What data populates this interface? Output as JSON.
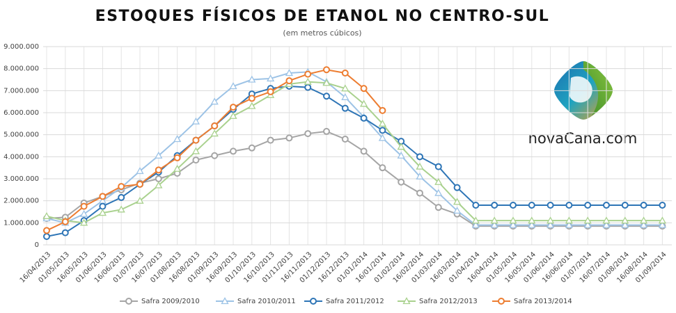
{
  "chart_data": {
    "type": "line",
    "title": "ESTOQUES FÍSICOS DE ETANOL NO CENTRO-SUL",
    "subtitle": "(em metros cúbicos)",
    "logo_text": "novaCana.com",
    "categories": [
      "16/04/2013",
      "01/05/2013",
      "16/05/2013",
      "01/06/2013",
      "16/06/2013",
      "01/07/2013",
      "16/07/2013",
      "01/08/2013",
      "16/08/2013",
      "01/09/2013",
      "16/09/2013",
      "01/10/2013",
      "16/10/2013",
      "01/11/2013",
      "16/11/2013",
      "01/12/2013",
      "16/12/2013",
      "01/01/2014",
      "16/01/2014",
      "01/02/2014",
      "16/02/2014",
      "01/03/2014",
      "16/03/2014",
      "01/04/2014",
      "16/04/2014",
      "01/05/2014",
      "16/05/2014",
      "01/06/2014",
      "16/06/2014",
      "01/07/2014",
      "16/07/2014",
      "01/08/2014",
      "16/08/2014",
      "01/09/2014"
    ],
    "ylim": [
      0,
      9000000
    ],
    "yticks": [
      {
        "value": 0,
        "label": "0"
      },
      {
        "value": 1000000,
        "label": "1.000.000"
      },
      {
        "value": 2000000,
        "label": "2.000.000"
      },
      {
        "value": 3000000,
        "label": "3.000.000"
      },
      {
        "value": 4000000,
        "label": "4.000.000"
      },
      {
        "value": 5000000,
        "label": "5.000.000"
      },
      {
        "value": 6000000,
        "label": "6.000.000"
      },
      {
        "value": 7000000,
        "label": "7.000.000"
      },
      {
        "value": 8000000,
        "label": "8.000.000"
      },
      {
        "value": 9000000,
        "label": "9.000.000"
      }
    ],
    "grid": true,
    "legend": "bottom",
    "series": [
      {
        "name": "Safra 2009/2010",
        "color": "#a5a5a5",
        "marker": "circle",
        "values": [
          1200000,
          1250000,
          1900000,
          2200000,
          2500000,
          2800000,
          3000000,
          3250000,
          3850000,
          4050000,
          4250000,
          4400000,
          4750000,
          4850000,
          5050000,
          5150000,
          4800000,
          4250000,
          3500000,
          2850000,
          2350000,
          1700000,
          1400000,
          850000,
          850000,
          850000,
          850000,
          850000,
          850000,
          850000,
          850000,
          850000,
          850000,
          850000
        ]
      },
      {
        "name": "Safra 2010/2011",
        "color": "#9dc3e6",
        "marker": "triangle",
        "values": [
          1200000,
          1000000,
          1400000,
          2000000,
          2600000,
          3350000,
          4050000,
          4800000,
          5600000,
          6500000,
          7200000,
          7500000,
          7550000,
          7800000,
          7850000,
          7400000,
          6700000,
          5800000,
          4850000,
          4050000,
          3100000,
          2350000,
          1550000,
          900000,
          900000,
          900000,
          900000,
          900000,
          900000,
          900000,
          900000,
          900000,
          900000,
          900000
        ]
      },
      {
        "name": "Safra 2011/2012",
        "color": "#2e75b6",
        "marker": "circle",
        "values": [
          380000,
          550000,
          1100000,
          1750000,
          2150000,
          2750000,
          3300000,
          4050000,
          4750000,
          5400000,
          6150000,
          6850000,
          7100000,
          7200000,
          7150000,
          6750000,
          6200000,
          5750000,
          5200000,
          4700000,
          4000000,
          3550000,
          2600000,
          1800000,
          1800000,
          1800000,
          1800000,
          1800000,
          1800000,
          1800000,
          1800000,
          1800000,
          1800000,
          1800000
        ]
      },
      {
        "name": "Safra 2012/2013",
        "color": "#a9d18e",
        "marker": "triangle",
        "values": [
          1300000,
          1100000,
          1000000,
          1450000,
          1600000,
          2000000,
          2700000,
          3450000,
          4250000,
          5050000,
          5850000,
          6300000,
          6800000,
          7300000,
          7400000,
          7350000,
          7100000,
          6400000,
          5500000,
          4450000,
          3550000,
          2850000,
          1950000,
          1100000,
          1100000,
          1100000,
          1100000,
          1100000,
          1100000,
          1100000,
          1100000,
          1100000,
          1100000,
          1100000
        ]
      },
      {
        "name": "Safra 2013/2014",
        "color": "#ed7d31",
        "marker": "circle",
        "values": [
          650000,
          1050000,
          1750000,
          2200000,
          2650000,
          2750000,
          3400000,
          3950000,
          4750000,
          5400000,
          6250000,
          6650000,
          6950000,
          7450000,
          7750000,
          7950000,
          7800000,
          7100000,
          6100000,
          null,
          null,
          null,
          null,
          null,
          null,
          null,
          null,
          null,
          null,
          null,
          null,
          null,
          null,
          null
        ]
      }
    ]
  }
}
